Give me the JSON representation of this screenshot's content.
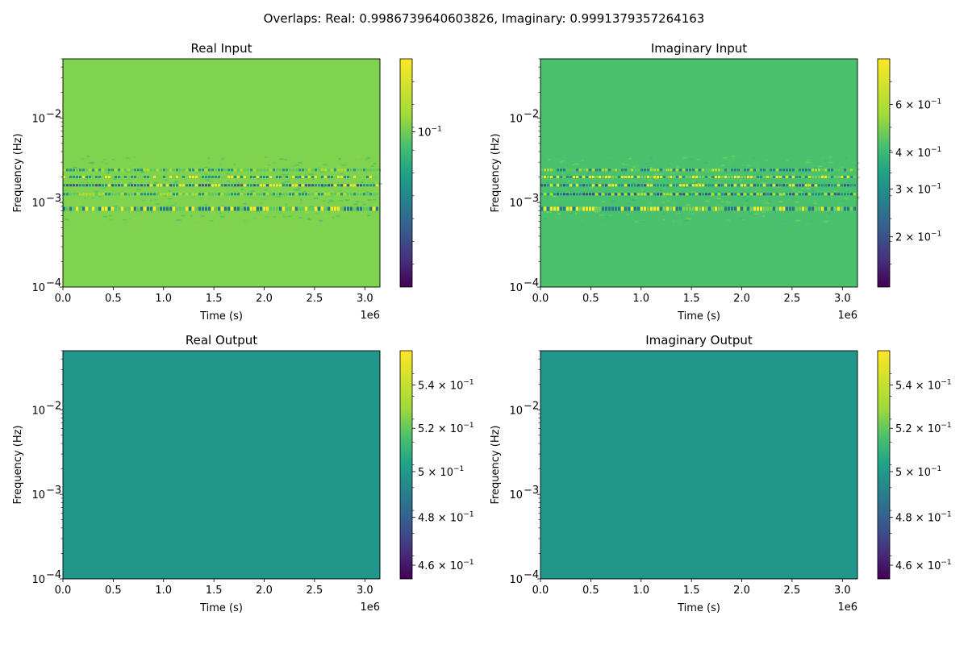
{
  "suptitle": "Overlaps: Real: 0.9986739640603826, Imaginary: 0.9991379357264163",
  "chart_data": [
    {
      "type": "heatmap",
      "title": "Real Input",
      "xlabel": "Time (s)",
      "ylabel": "Frequency (Hz)",
      "x_offset_label": "1e6",
      "xlim": [
        0,
        3150000
      ],
      "ylim": [
        0.0001,
        0.05
      ],
      "yscale": "log",
      "x_ticks": [
        "0.0",
        "0.5",
        "1.0",
        "1.5",
        "2.0",
        "2.5",
        "3.0"
      ],
      "y_ticks": [
        {
          "base": "10",
          "exp": "−2"
        },
        {
          "base": "10",
          "exp": "−3"
        },
        {
          "base": "10",
          "exp": "−4"
        }
      ],
      "colormap": "viridis",
      "colorbar": {
        "scale": "log",
        "ticks": [
          {
            "mant": "",
            "exp": "−1",
            "pos": 0.32
          }
        ]
      },
      "background_color": "#7fd34e",
      "bands": [
        {
          "freq": 0.00085,
          "colors": [
            "#fde725",
            "#5ec962",
            "#2a788e"
          ]
        },
        {
          "freq": 0.00124,
          "colors": [
            "#b5de2b",
            "#21918c",
            "#5ec962"
          ]
        },
        {
          "freq": 0.00158,
          "colors": [
            "#21918c",
            "#fde725",
            "#3b528b"
          ]
        },
        {
          "freq": 0.00198,
          "colors": [
            "#21918c",
            "#7ad151",
            "#fde725"
          ]
        },
        {
          "freq": 0.0024,
          "colors": [
            "#5ec962",
            "#b5de2b",
            "#21918c"
          ]
        }
      ]
    },
    {
      "type": "heatmap",
      "title": "Imaginary Input",
      "xlabel": "Time (s)",
      "ylabel": "Frequency (Hz)",
      "x_offset_label": "1e6",
      "xlim": [
        0,
        3150000
      ],
      "ylim": [
        0.0001,
        0.05
      ],
      "yscale": "log",
      "x_ticks": [
        "0.0",
        "0.5",
        "1.0",
        "1.5",
        "2.0",
        "2.5",
        "3.0"
      ],
      "y_ticks": [
        {
          "base": "10",
          "exp": "−2"
        },
        {
          "base": "10",
          "exp": "−3"
        },
        {
          "base": "10",
          "exp": "−4"
        }
      ],
      "colormap": "viridis",
      "colorbar": {
        "scale": "log",
        "ticks": [
          {
            "mant": "6 × 10",
            "exp": "−1",
            "pos": 0.2
          },
          {
            "mant": "4 × 10",
            "exp": "−1",
            "pos": 0.41
          },
          {
            "mant": "3 × 10",
            "exp": "−1",
            "pos": 0.57
          },
          {
            "mant": "2 × 10",
            "exp": "−1",
            "pos": 0.78
          }
        ]
      },
      "background_color": "#4ac16d",
      "bands": [
        {
          "freq": 0.00085,
          "colors": [
            "#fde725",
            "#2a788e",
            "#7ad151"
          ]
        },
        {
          "freq": 0.00124,
          "colors": [
            "#b5de2b",
            "#21918c",
            "#3b528b"
          ]
        },
        {
          "freq": 0.00158,
          "colors": [
            "#21918c",
            "#fde725",
            "#3b528b"
          ]
        },
        {
          "freq": 0.00198,
          "colors": [
            "#21918c",
            "#7ad151",
            "#fde725"
          ]
        },
        {
          "freq": 0.0024,
          "colors": [
            "#5ec962",
            "#2a788e",
            "#b5de2b"
          ]
        }
      ]
    },
    {
      "type": "heatmap",
      "title": "Real Output",
      "xlabel": "Time (s)",
      "ylabel": "Frequency (Hz)",
      "x_offset_label": "1e6",
      "xlim": [
        0,
        3150000
      ],
      "ylim": [
        0.0001,
        0.05
      ],
      "yscale": "log",
      "x_ticks": [
        "0.0",
        "0.5",
        "1.0",
        "1.5",
        "2.0",
        "2.5",
        "3.0"
      ],
      "y_ticks": [
        {
          "base": "10",
          "exp": "−2"
        },
        {
          "base": "10",
          "exp": "−3"
        },
        {
          "base": "10",
          "exp": "−4"
        }
      ],
      "colormap": "viridis",
      "colorbar": {
        "scale": "log",
        "ticks": [
          {
            "mant": "5.4 × 10",
            "exp": "−1",
            "pos": 0.15
          },
          {
            "mant": "5.2 × 10",
            "exp": "−1",
            "pos": 0.34
          },
          {
            "mant": "5 × 10",
            "exp": "−1",
            "pos": 0.53
          },
          {
            "mant": "4.8 × 10",
            "exp": "−1",
            "pos": 0.73
          },
          {
            "mant": "4.6 × 10",
            "exp": "−1",
            "pos": 0.94
          }
        ]
      },
      "background_color": "#21968a",
      "bands": []
    },
    {
      "type": "heatmap",
      "title": "Imaginary Output",
      "xlabel": "Time (s)",
      "ylabel": "Frequency (Hz)",
      "x_offset_label": "1e6",
      "xlim": [
        0,
        3150000
      ],
      "ylim": [
        0.0001,
        0.05
      ],
      "yscale": "log",
      "x_ticks": [
        "0.0",
        "0.5",
        "1.0",
        "1.5",
        "2.0",
        "2.5",
        "3.0"
      ],
      "y_ticks": [
        {
          "base": "10",
          "exp": "−2"
        },
        {
          "base": "10",
          "exp": "−3"
        },
        {
          "base": "10",
          "exp": "−4"
        }
      ],
      "colormap": "viridis",
      "colorbar": {
        "scale": "log",
        "ticks": [
          {
            "mant": "5.4 × 10",
            "exp": "−1",
            "pos": 0.15
          },
          {
            "mant": "5.2 × 10",
            "exp": "−1",
            "pos": 0.34
          },
          {
            "mant": "5 × 10",
            "exp": "−1",
            "pos": 0.53
          },
          {
            "mant": "4.8 × 10",
            "exp": "−1",
            "pos": 0.73
          },
          {
            "mant": "4.6 × 10",
            "exp": "−1",
            "pos": 0.94
          }
        ]
      },
      "background_color": "#21968a",
      "bands": []
    }
  ]
}
